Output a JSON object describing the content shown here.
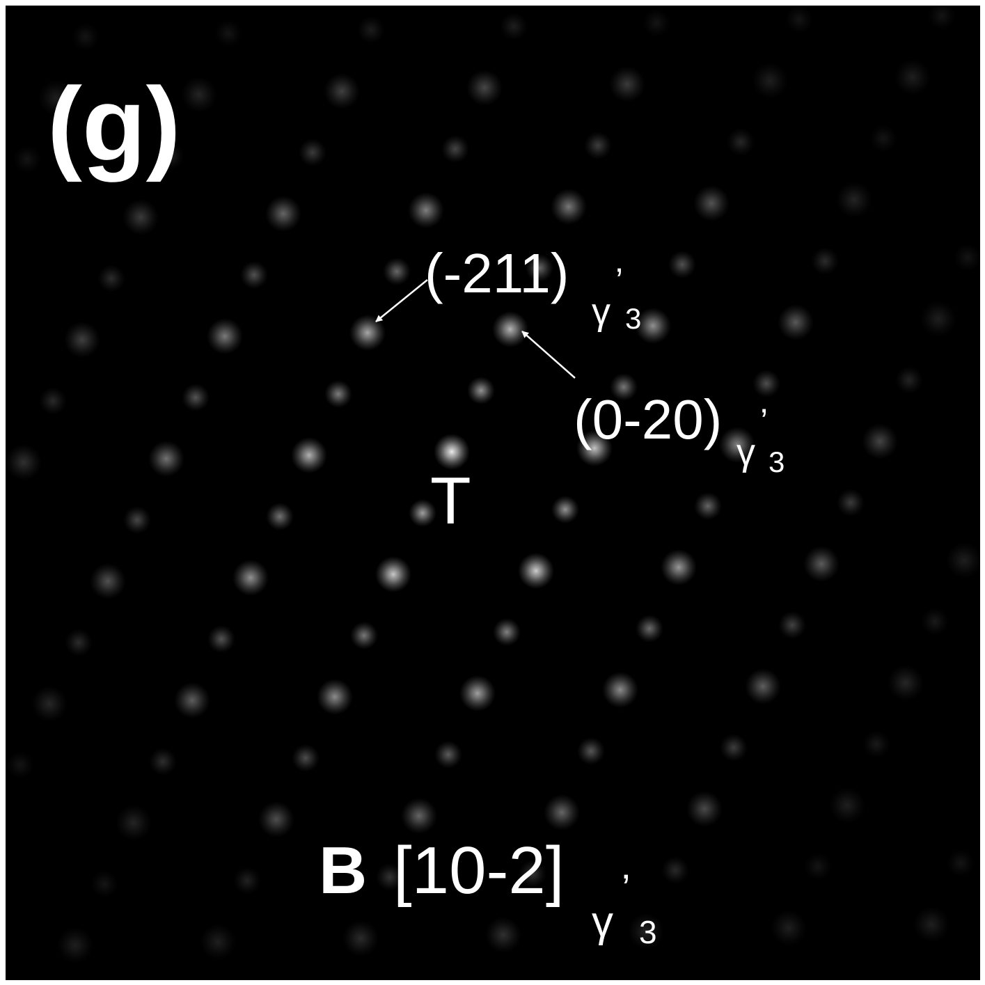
{
  "panel_label": "(g)",
  "annotations": [
    {
      "text": "(-211)",
      "symbol": "γ",
      "prime": "’",
      "index": "3"
    },
    {
      "text": "(0-20)",
      "symbol": "γ",
      "prime": "’",
      "index": "3"
    }
  ],
  "region_label": "T",
  "zone_axis": {
    "prefix": "B",
    "text": "[10-2]",
    "symbol": "γ",
    "prime": "’",
    "index": "3"
  }
}
